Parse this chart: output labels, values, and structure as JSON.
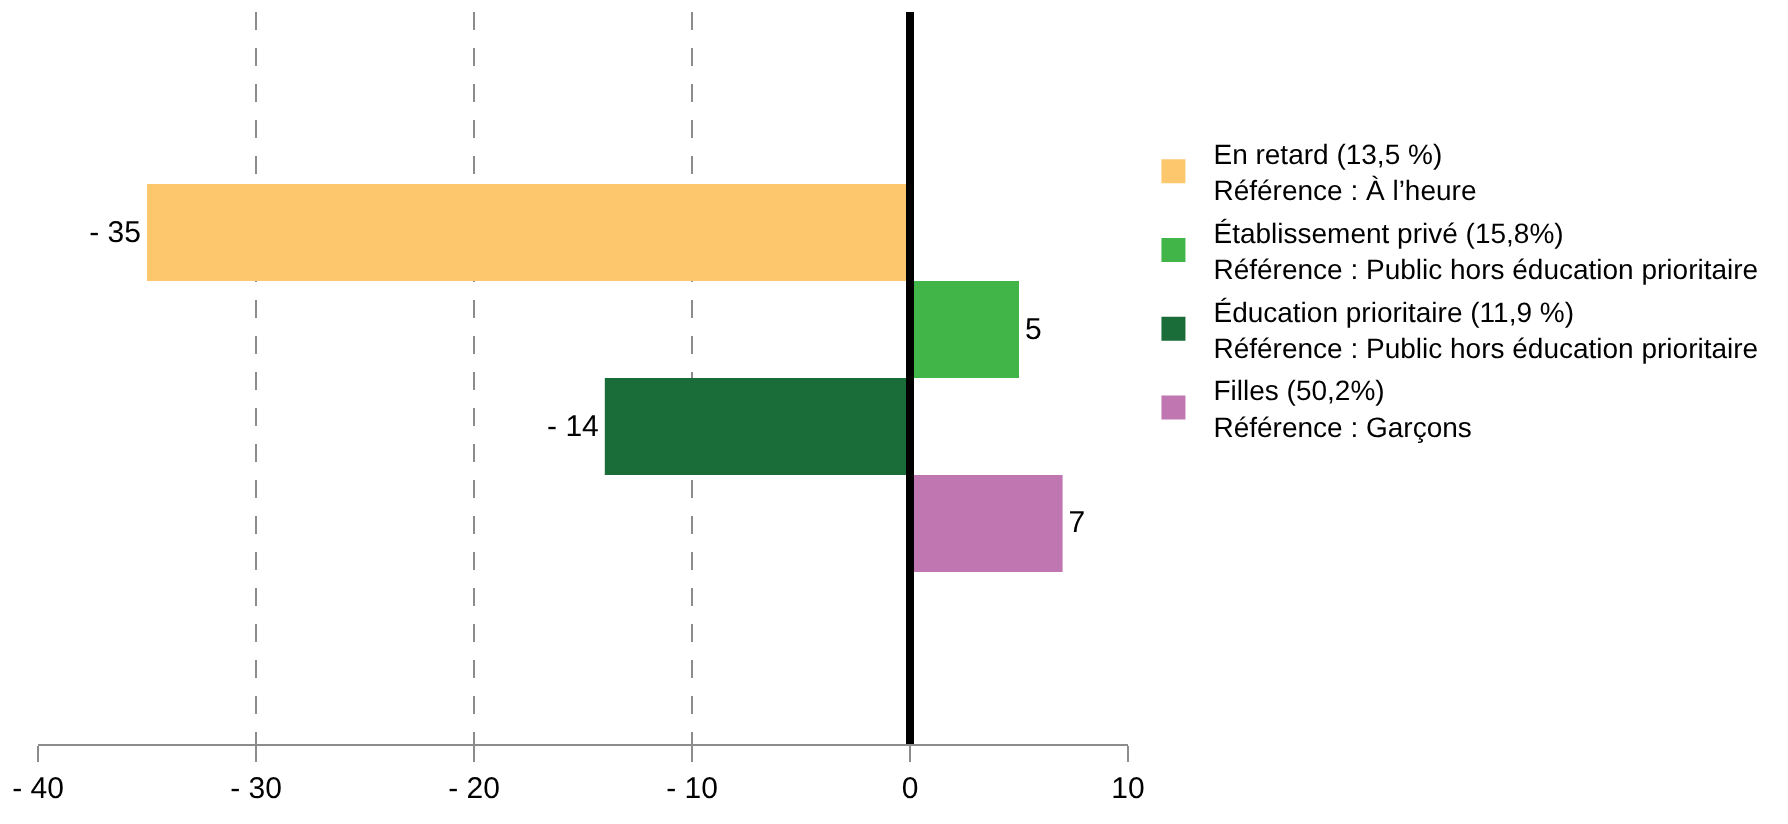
{
  "chart_data": {
    "type": "bar",
    "orientation": "horizontal",
    "categories": [
      null
    ],
    "series": [
      {
        "name": "En retard (13,5 %)\nRéférence : À l’heure",
        "color": "#fdc76e",
        "values": [
          -35
        ],
        "value_labels": [
          "- 35"
        ]
      },
      {
        "name": "Établissement privé (15,8%)\nRéférence : Public hors éducation prioritaire",
        "color": "#42b549",
        "values": [
          5
        ],
        "value_labels": [
          "5"
        ]
      },
      {
        "name": "Éducation prioritaire (11,9 %)\nRéférence : Public hors éducation prioritaire",
        "color": "#1a6d39",
        "values": [
          -14
        ],
        "value_labels": [
          "- 14"
        ]
      },
      {
        "name": "Filles (50,2%)\nRéférence : Garçons",
        "color": "#c076b0",
        "values": [
          7
        ],
        "value_labels": [
          "7"
        ]
      }
    ],
    "xlim": [
      -40,
      10
    ],
    "xticks": [
      {
        "value": -40,
        "label": "- 40"
      },
      {
        "value": -30,
        "label": "- 30"
      },
      {
        "value": -20,
        "label": "- 20"
      },
      {
        "value": -10,
        "label": "- 10"
      },
      0,
      10
    ],
    "ref_lines": [
      {
        "axis": "x",
        "value": 0,
        "color": "#000000"
      }
    ],
    "grid": "x",
    "legend": "right",
    "tick_labels": "x"
  }
}
